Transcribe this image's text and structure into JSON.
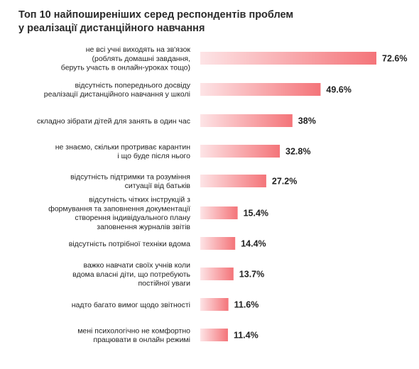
{
  "chart_data": {
    "type": "bar",
    "orientation": "horizontal",
    "title": [
      "Топ 10 найпоширеніших серед респондентів проблем",
      "у реалізації дистанційного навчання"
    ],
    "categories": [
      [
        "не всі учні виходять на зв'язок",
        "(роблять домашні завдання,",
        "беруть участь в онлайн-уроках тощо)"
      ],
      [
        "відсутність попереднього досвіду",
        "реалізації дистанційного навчання у школі"
      ],
      [
        "складно зібрати дітей для занять в один час"
      ],
      [
        "не знаємо, скільки протриває карантин",
        "і що буде після нього"
      ],
      [
        "відсутність підтримки та розуміння",
        "ситуації від батьків"
      ],
      [
        "відсутність чітких інструкцій з",
        "формування та заповнення документації",
        "створення індивідуального плану",
        "заповнення журналів звітів"
      ],
      [
        "відсутність потрібної техніки вдома"
      ],
      [
        "важко навчати своїх учнів коли",
        "вдома власні діти, що потребують",
        "постійної уваги"
      ],
      [
        "надто багато вимог щодо звітності"
      ],
      [
        "мені психологічно не комфортно",
        "працювати в онлайн режимі"
      ]
    ],
    "values": [
      72.6,
      49.6,
      38,
      32.8,
      27.2,
      15.4,
      14.4,
      13.7,
      11.6,
      11.4
    ],
    "value_labels": [
      "72.6%",
      "49.6%",
      "38%",
      "32.8%",
      "27.2%",
      "15.4%",
      "14.4%",
      "13.7%",
      "11.6%",
      "11.4%"
    ],
    "xlim": [
      0,
      72.6
    ],
    "colors": {
      "bar_light": "#fde4e6",
      "bar_dark": "#f47479"
    },
    "grid": false,
    "legend": "none"
  }
}
